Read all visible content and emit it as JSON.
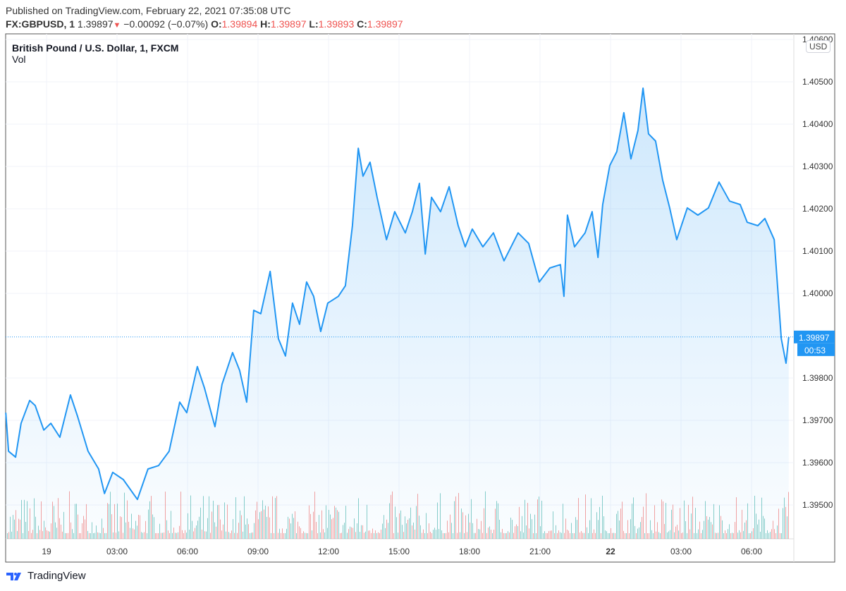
{
  "header": {
    "published": "Published on TradingView.com, February 22, 2021 07:35:08 UTC",
    "symbol": "FX:GBPUSD, 1",
    "last": "1.39897",
    "change": "−0.00092 (−0.07%)",
    "o_label": "O:",
    "o": "1.39894",
    "h_label": "H:",
    "h": "1.39897",
    "l_label": "L:",
    "l": "1.39893",
    "c_label": "C:",
    "c": "1.39897"
  },
  "legend": {
    "title": "British Pound / U.S. Dollar, 1, FXCM",
    "vol": "Vol"
  },
  "currency": "USD",
  "brand": "TradingView",
  "colors": {
    "line": "#2196f3",
    "up_volume": "#26a69a",
    "down_volume": "#ef5350",
    "down": "#ef5350"
  },
  "chart_data": {
    "type": "area",
    "ylim": [
      1.3943,
      1.4061
    ],
    "grid": true,
    "y_ticks": [
      "1.40600",
      "1.40500",
      "1.40400",
      "1.40300",
      "1.40200",
      "1.40100",
      "1.40000",
      "1.39800",
      "1.39700",
      "1.39600",
      "1.39500"
    ],
    "x_ticks": [
      {
        "label": "19",
        "t": "19 00:00",
        "bold": false
      },
      {
        "label": "03:00",
        "t": "19 03:00"
      },
      {
        "label": "06:00",
        "t": "19 06:00"
      },
      {
        "label": "09:00",
        "t": "19 09:00"
      },
      {
        "label": "12:00",
        "t": "19 12:00"
      },
      {
        "label": "15:00",
        "t": "19 15:00"
      },
      {
        "label": "18:00",
        "t": "19 18:00"
      },
      {
        "label": "21:00",
        "t": "19 21:00"
      },
      {
        "label": "22",
        "t": "22 00:00",
        "bold": true
      },
      {
        "label": "03:00",
        "t": "22 03:00"
      },
      {
        "label": "06:00",
        "t": "22 06:00"
      }
    ],
    "last_price_label": "1.39897",
    "countdown": "00:53",
    "volume_shown": true,
    "series": [
      {
        "t": [
          "18 22:16",
          "18 22:23",
          "18 22:41",
          "18 22:55",
          "18 23:17",
          "18 23:31",
          "18 23:53",
          "19 00:11",
          "19 00:34",
          "19 01:01",
          "19 01:19",
          "19 01:46",
          "19 02:13",
          "19 02:28",
          "19 02:49",
          "19 03:16",
          "19 03:52",
          "19 04:19",
          "19 04:46",
          "19 05:13",
          "19 05:40",
          "19 05:58",
          "19 06:25",
          "19 06:43",
          "19 07:10",
          "19 07:28",
          "19 07:55",
          "19 08:13",
          "19 08:31",
          "19 08:49",
          "19 09:07",
          "19 09:31",
          "19 09:52",
          "19 10:10",
          "19 10:28",
          "19 10:46",
          "19 11:04",
          "19 11:22",
          "19 11:40",
          "19 11:58",
          "19 12:25",
          "19 12:43",
          "19 13:01",
          "19 13:16",
          "19 13:28",
          "19 13:46",
          "19 14:04",
          "19 14:28",
          "19 14:49",
          "19 15:16",
          "19 15:34",
          "19 15:52",
          "19 16:07",
          "19 16:23",
          "19 16:46",
          "19 17:08",
          "19 17:31",
          "19 17:49",
          "19 18:07",
          "19 18:34",
          "19 19:01",
          "19 19:28",
          "19 20:04",
          "19 20:31",
          "19 20:58",
          "19 21:25",
          "19 21:52",
          "19 22:01",
          "19 22:10",
          "19 22:28",
          "19 22:55",
          "19 23:13",
          "19 23:28",
          "19 23:40",
          "19 23:58",
          "22 00:16",
          "22 00:34",
          "22 00:52",
          "22 01:10",
          "22 01:23",
          "22 01:37",
          "22 01:55",
          "22 02:13",
          "22 02:31",
          "22 02:49",
          "22 03:16",
          "22 03:43",
          "22 04:10",
          "22 04:37",
          "22 05:04",
          "22 05:31",
          "22 05:49",
          "22 06:16",
          "22 06:34",
          "22 06:58",
          "22 07:07",
          "22 07:16",
          "22 07:28",
          "22 07:35"
        ],
        "price": [
          1.39718,
          1.39627,
          1.39613,
          1.39693,
          1.39747,
          1.39735,
          1.39677,
          1.39693,
          1.3966,
          1.3976,
          1.3971,
          1.39627,
          1.39585,
          1.39527,
          1.39577,
          1.3956,
          1.39513,
          1.39585,
          1.39593,
          1.39627,
          1.39743,
          1.39718,
          1.39827,
          1.39777,
          1.39685,
          1.39785,
          1.3986,
          1.39818,
          1.39743,
          1.3996,
          1.39952,
          1.40052,
          1.39893,
          1.39852,
          1.39977,
          1.39927,
          1.40027,
          1.39993,
          1.3991,
          1.39977,
          1.39993,
          1.40018,
          1.4016,
          1.40343,
          1.40277,
          1.4031,
          1.40227,
          1.40127,
          1.40193,
          1.40143,
          1.40193,
          1.4026,
          1.40093,
          1.40227,
          1.40193,
          1.40252,
          1.4016,
          1.4011,
          1.40152,
          1.4011,
          1.40143,
          1.40077,
          1.40143,
          1.40118,
          1.40027,
          1.4006,
          1.40068,
          1.39993,
          1.40185,
          1.4011,
          1.40143,
          1.40193,
          1.40085,
          1.4021,
          1.40302,
          1.40335,
          1.40427,
          1.40318,
          1.40385,
          1.40485,
          1.40377,
          1.4036,
          1.40268,
          1.40202,
          1.40127,
          1.40202,
          1.40185,
          1.40202,
          1.40263,
          1.40218,
          1.4021,
          1.40168,
          1.4016,
          1.40177,
          1.40127,
          1.4001,
          1.39893,
          1.39835,
          1.39897
        ]
      }
    ]
  }
}
